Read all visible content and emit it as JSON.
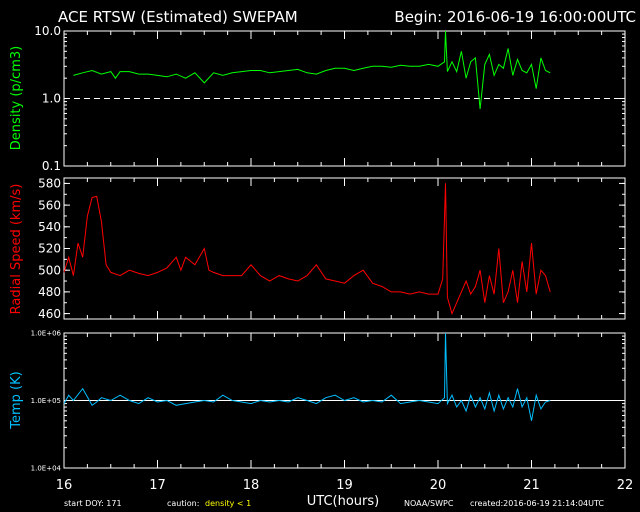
{
  "header": {
    "title": "ACE RTSW (Estimated) SWEPAM",
    "begin": "Begin: 2016-06-19 16:00:00UTC"
  },
  "footer": {
    "start_doy": "start DOY: 171",
    "caution_label": "caution:",
    "caution_value": "density < 1",
    "source": "NOAA/SWPC",
    "created": "created:2016-06-19 21:14:04UTC"
  },
  "colors": {
    "density": "#00ff00",
    "speed": "#ff0000",
    "temp": "#00bfff",
    "axes": "#ffffff",
    "caution": "#ffff00",
    "background": "#000000"
  },
  "chart_data": [
    {
      "type": "line",
      "panel": "density",
      "ylabel": "Density (p/cm3)",
      "yscale": "log",
      "ylim": [
        0.1,
        10.0
      ],
      "yticks": [
        "10.0",
        "1.0",
        "0.1"
      ],
      "reference_lines": [
        {
          "y": 1.0,
          "style": "dashed"
        }
      ],
      "series": [
        {
          "color": "#00ff00",
          "x": [
            16.1,
            16.2,
            16.3,
            16.4,
            16.5,
            16.55,
            16.6,
            16.7,
            16.8,
            16.9,
            17.0,
            17.1,
            17.2,
            17.3,
            17.4,
            17.5,
            17.6,
            17.7,
            17.8,
            17.9,
            18.0,
            18.1,
            18.2,
            18.3,
            18.4,
            18.5,
            18.6,
            18.7,
            18.8,
            18.9,
            19.0,
            19.1,
            19.2,
            19.3,
            19.4,
            19.5,
            19.6,
            19.7,
            19.8,
            19.9,
            20.0,
            20.07,
            20.08,
            20.1,
            20.15,
            20.2,
            20.25,
            20.3,
            20.35,
            20.4,
            20.45,
            20.5,
            20.55,
            20.6,
            20.65,
            20.7,
            20.75,
            20.8,
            20.85,
            20.9,
            20.95,
            21.0,
            21.05,
            21.1,
            21.15,
            21.2
          ],
          "values": [
            2.2,
            2.4,
            2.6,
            2.3,
            2.5,
            2.0,
            2.5,
            2.5,
            2.3,
            2.3,
            2.2,
            2.1,
            2.3,
            2.0,
            2.4,
            1.7,
            2.4,
            2.2,
            2.4,
            2.5,
            2.6,
            2.6,
            2.4,
            2.5,
            2.6,
            2.7,
            2.4,
            2.3,
            2.6,
            2.8,
            2.8,
            2.6,
            2.8,
            3.0,
            3.0,
            2.9,
            3.1,
            3.0,
            3.0,
            3.2,
            3.0,
            3.5,
            10.0,
            2.5,
            3.5,
            2.5,
            5.0,
            2.0,
            3.5,
            4.0,
            0.7,
            3.2,
            4.5,
            2.2,
            3.2,
            2.8,
            5.5,
            2.2,
            3.8,
            2.6,
            2.4,
            3.2,
            1.4,
            4.0,
            2.6,
            2.4
          ]
        }
      ]
    },
    {
      "type": "line",
      "panel": "speed",
      "ylabel": "Radial Speed (km/s)",
      "ylim": [
        455,
        585
      ],
      "yticks": [
        "580",
        "560",
        "540",
        "520",
        "500",
        "480",
        "460"
      ],
      "series": [
        {
          "color": "#ff0000",
          "x": [
            16.0,
            16.05,
            16.1,
            16.15,
            16.2,
            16.25,
            16.3,
            16.35,
            16.4,
            16.45,
            16.5,
            16.6,
            16.7,
            16.8,
            16.9,
            17.0,
            17.1,
            17.2,
            17.25,
            17.3,
            17.4,
            17.5,
            17.55,
            17.6,
            17.7,
            17.8,
            17.9,
            18.0,
            18.1,
            18.2,
            18.3,
            18.4,
            18.5,
            18.6,
            18.7,
            18.8,
            18.9,
            19.0,
            19.1,
            19.2,
            19.3,
            19.4,
            19.5,
            19.6,
            19.7,
            19.8,
            19.9,
            20.0,
            20.05,
            20.08,
            20.1,
            20.15,
            20.2,
            20.25,
            20.3,
            20.35,
            20.4,
            20.45,
            20.5,
            20.55,
            20.6,
            20.65,
            20.7,
            20.75,
            20.8,
            20.85,
            20.9,
            20.95,
            21.0,
            21.05,
            21.1,
            21.15,
            21.2
          ],
          "values": [
            498,
            512,
            495,
            525,
            512,
            550,
            567,
            568,
            545,
            505,
            498,
            495,
            500,
            497,
            495,
            498,
            502,
            512,
            500,
            512,
            505,
            520,
            500,
            498,
            495,
            495,
            495,
            505,
            495,
            490,
            495,
            492,
            490,
            495,
            505,
            492,
            490,
            488,
            495,
            500,
            488,
            485,
            480,
            480,
            478,
            480,
            478,
            478,
            492,
            580,
            475,
            460,
            470,
            480,
            490,
            478,
            485,
            500,
            470,
            495,
            478,
            520,
            470,
            480,
            500,
            470,
            508,
            480,
            525,
            478,
            500,
            495,
            480
          ]
        }
      ]
    },
    {
      "type": "line",
      "panel": "temp",
      "ylabel": "Temp (K)",
      "yscale": "log",
      "ylim": [
        10000,
        1000000
      ],
      "yticks": [
        "1.0E+06",
        "1.0E+05",
        "1.0E+04"
      ],
      "reference_lines": [
        {
          "y": 100000,
          "style": "solid"
        }
      ],
      "series": [
        {
          "color": "#00bfff",
          "x": [
            16.0,
            16.05,
            16.1,
            16.2,
            16.3,
            16.35,
            16.4,
            16.5,
            16.6,
            16.7,
            16.8,
            16.9,
            17.0,
            17.1,
            17.2,
            17.3,
            17.4,
            17.5,
            17.6,
            17.7,
            17.8,
            17.9,
            18.0,
            18.1,
            18.2,
            18.3,
            18.4,
            18.5,
            18.6,
            18.7,
            18.8,
            18.9,
            19.0,
            19.1,
            19.2,
            19.3,
            19.4,
            19.5,
            19.6,
            19.7,
            19.8,
            19.9,
            20.0,
            20.07,
            20.08,
            20.1,
            20.15,
            20.2,
            20.25,
            20.3,
            20.35,
            20.4,
            20.45,
            20.5,
            20.55,
            20.6,
            20.65,
            20.7,
            20.75,
            20.8,
            20.85,
            20.9,
            20.95,
            21.0,
            21.05,
            21.1,
            21.15,
            21.2
          ],
          "values": [
            90000,
            120000,
            100000,
            150000,
            85000,
            95000,
            110000,
            100000,
            120000,
            100000,
            90000,
            110000,
            95000,
            100000,
            85000,
            90000,
            95000,
            100000,
            95000,
            120000,
            100000,
            95000,
            90000,
            100000,
            95000,
            100000,
            95000,
            110000,
            100000,
            90000,
            110000,
            120000,
            100000,
            110000,
            95000,
            100000,
            95000,
            120000,
            90000,
            95000,
            100000,
            95000,
            90000,
            110000,
            1000000,
            90000,
            120000,
            80000,
            100000,
            70000,
            120000,
            80000,
            110000,
            75000,
            130000,
            70000,
            120000,
            75000,
            110000,
            80000,
            150000,
            80000,
            110000,
            50000,
            120000,
            75000,
            95000,
            100000
          ]
        }
      ]
    }
  ],
  "x_axis": {
    "label": "UTC(hours)",
    "min": 16,
    "max": 22,
    "ticks": [
      "16",
      "17",
      "18",
      "19",
      "20",
      "21",
      "22"
    ]
  }
}
